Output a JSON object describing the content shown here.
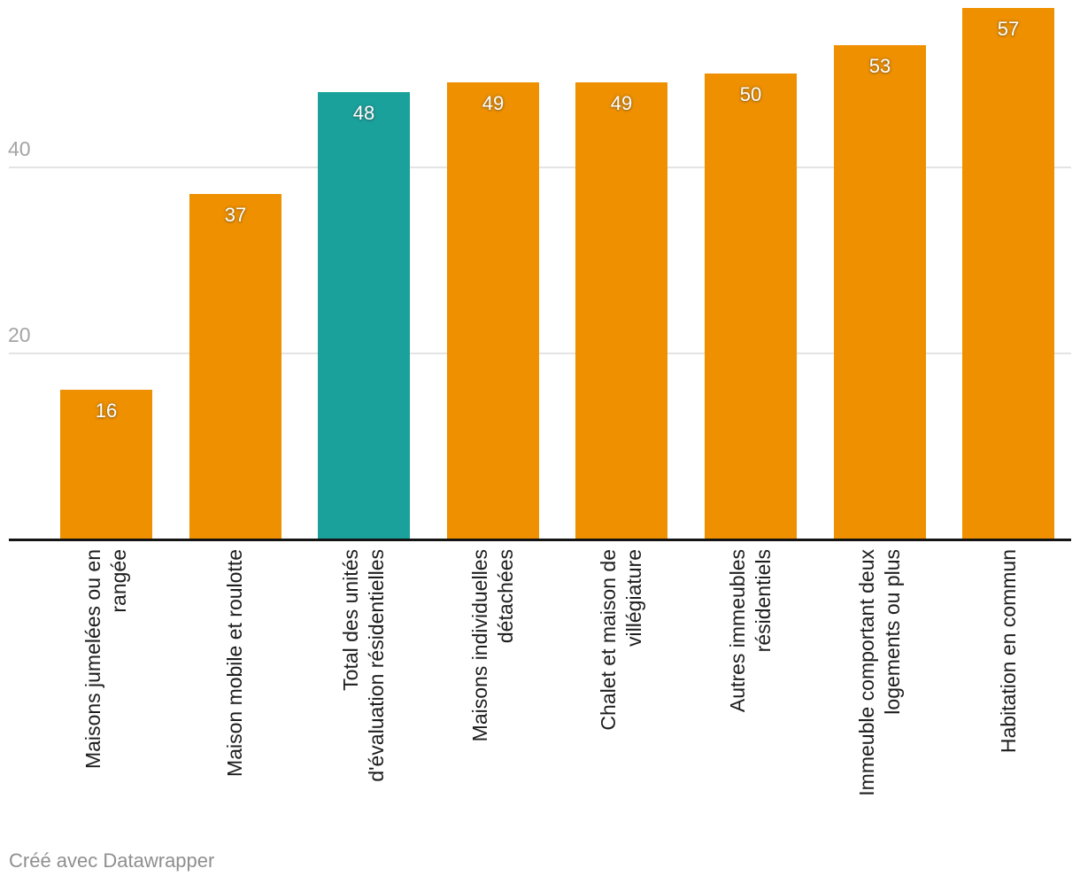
{
  "chart_data": {
    "type": "bar",
    "title": "",
    "xlabel": "",
    "ylabel": "",
    "categories": [
      "Maisons jumelées ou en rangée",
      "Maison mobile et roulotte",
      "Total des unités d'évaluation résidentielles",
      "Maisons individuelles détachées",
      "Chalet et maison de villégiature",
      "Autres immeubles résidentiels",
      "Immeuble comportant deux logements ou plus",
      "Habitation en commun"
    ],
    "category_lines": [
      [
        "Maisons jumelées ou en",
        "rangée"
      ],
      [
        "Maison mobile et roulotte"
      ],
      [
        "Total des unités",
        "d'évaluation résidentielles"
      ],
      [
        "Maisons individuelles",
        "détachées"
      ],
      [
        "Chalet et maison de",
        "villégiature"
      ],
      [
        "Autres immeubles",
        "résidentiels"
      ],
      [
        "Immeuble comportant deux",
        "logements ou plus"
      ],
      [
        "Habitation en commun"
      ]
    ],
    "values": [
      16,
      37,
      48,
      49,
      49,
      50,
      53,
      57
    ],
    "value_labels": [
      "16",
      "37",
      "48",
      "49",
      "49",
      "50",
      "53",
      "57"
    ],
    "bar_colors": [
      "#EE9000",
      "#EE9000",
      "#1AA19C",
      "#EE9000",
      "#EE9000",
      "#EE9000",
      "#EE9000",
      "#EE9000"
    ],
    "highlight_index": 2,
    "yticks": [
      20,
      40
    ],
    "ylim": [
      0,
      58
    ],
    "grid": "on",
    "legend": "none"
  },
  "colors": {
    "bar_default": "#EE9000",
    "bar_highlight": "#1AA19C",
    "gridline": "#E4E4E4",
    "axis_line": "#141414",
    "tick_label": "#A4A4A4",
    "category_label": "#1D1D1D",
    "value_label": "#FFFFFF",
    "footer_text": "#8F8F8F",
    "background": "#FFFFFF"
  },
  "footer": {
    "credit": "Créé avec Datawrapper"
  }
}
